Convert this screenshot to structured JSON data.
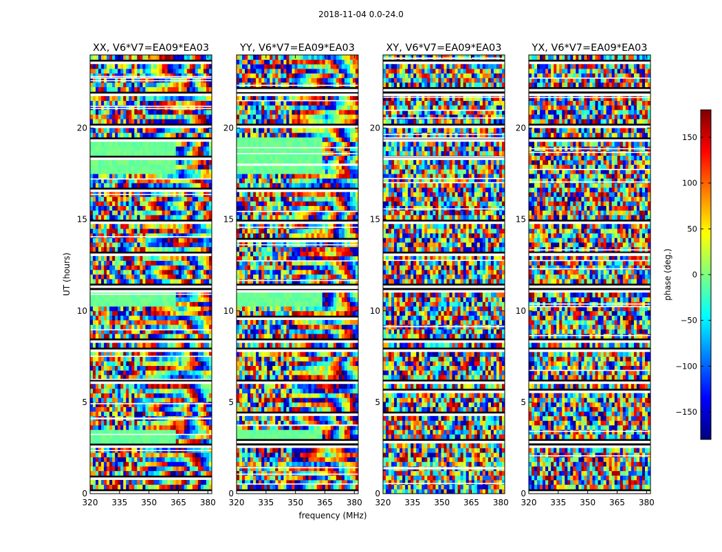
{
  "figure_title": "2018-11-04 0.0-24.0",
  "chart_data": [
    {
      "type": "heatmap",
      "title": "XX, V6*V7=EA09*EA03",
      "xlabel": "frequency (MHz)",
      "ylabel": "UT (hours)",
      "xlim": [
        320,
        382
      ],
      "ylim": [
        0,
        24
      ],
      "xticks": [
        320,
        335,
        350,
        365,
        380
      ],
      "yticks": [
        0,
        5,
        10,
        15,
        20
      ],
      "colormap": "jet"
    },
    {
      "type": "heatmap",
      "title": "YY, V6*V7=EA09*EA03",
      "xlabel": "frequency (MHz)",
      "ylabel": "",
      "xlim": [
        320,
        382
      ],
      "ylim": [
        0,
        24
      ],
      "xticks": [
        320,
        335,
        350,
        365,
        380
      ],
      "yticks": [
        0,
        5,
        10,
        15,
        20
      ],
      "colormap": "jet"
    },
    {
      "type": "heatmap",
      "title": "XY, V6*V7=EA09*EA03",
      "xlabel": "",
      "ylabel": "",
      "xlim": [
        320,
        382
      ],
      "ylim": [
        0,
        24
      ],
      "xticks": [
        320,
        335,
        350,
        365,
        380
      ],
      "yticks": [
        0,
        5,
        10,
        15,
        20
      ],
      "colormap": "jet"
    },
    {
      "type": "heatmap",
      "title": "YX, V6*V7=EA09*EA03",
      "xlabel": "",
      "ylabel": "",
      "xlim": [
        320,
        382
      ],
      "ylim": [
        0,
        24
      ],
      "xticks": [
        320,
        335,
        350,
        365,
        380
      ],
      "yticks": [
        0,
        5,
        10,
        15,
        20
      ],
      "colormap": "jet"
    }
  ],
  "colorbar": {
    "label": "phase (deg.)",
    "range": [
      -180,
      180
    ],
    "ticks": [
      -150,
      -100,
      -50,
      0,
      50,
      100,
      150
    ],
    "tick_labels": [
      "−150",
      "−100",
      "−50",
      "0",
      "50",
      "100",
      "150"
    ],
    "colormap": "jet"
  },
  "colors": {
    "jet": [
      "#00007f",
      "#0000ff",
      "#007fff",
      "#00ffff",
      "#7fff7f",
      "#ffff00",
      "#ff7f00",
      "#ff0000",
      "#7f0000"
    ]
  }
}
